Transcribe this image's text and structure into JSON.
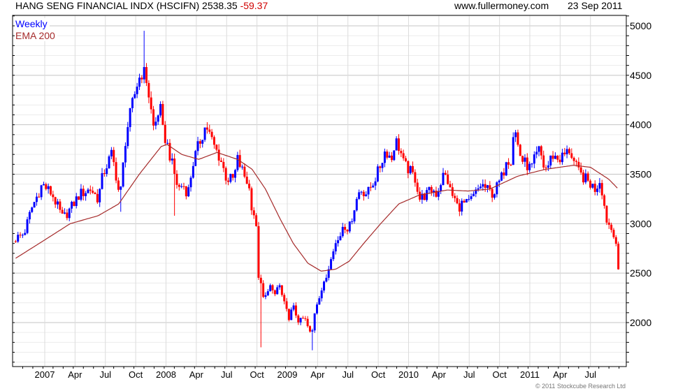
{
  "header": {
    "title": "HANG SENG FINANCIAL INDX (HSCIFN) 2538.35",
    "change": "-59.37",
    "site": "www.fullermoney.com",
    "date": "23 Sep 2011"
  },
  "copyright": "© 2011 Stockcube Research Ltd",
  "colors": {
    "up": "#0000ff",
    "down": "#ff0000",
    "ema": "#a52a2a",
    "change": "#d00000"
  },
  "chart_data": {
    "type": "candlestick",
    "title": "HANG SENG FINANCIAL INDX (HSCIFN)",
    "legend": [
      {
        "label": "Weekly",
        "color": "#0000ff"
      },
      {
        "label": "EMA 200",
        "color": "#a52a2a"
      }
    ],
    "legend_placement": "top-left",
    "frequency": "weekly",
    "last_close": 2538.35,
    "last_change": -59.37,
    "ylim": [
      1560,
      5100
    ],
    "y_ticks": [
      2000,
      2500,
      3000,
      3500,
      4000,
      4500,
      5000
    ],
    "y_tick_labels": [
      "2000",
      "2500",
      "3000",
      "3500",
      "4000",
      "4500",
      "5000"
    ],
    "x_tick_labels": [
      "2007",
      "Apr",
      "Jul",
      "Oct",
      "2008",
      "Apr",
      "Jul",
      "Oct",
      "2009",
      "Apr",
      "Jul",
      "Oct",
      "2010",
      "Apr",
      "Jul",
      "Oct",
      "2011",
      "Apr",
      "Jul"
    ],
    "x_tick_start_year": 2007,
    "grid": true,
    "weekly_close_keypoints": [
      [
        2006.76,
        2850
      ],
      [
        2006.83,
        2900
      ],
      [
        2006.89,
        3150
      ],
      [
        2006.98,
        3400
      ],
      [
        2007.06,
        3300
      ],
      [
        2007.15,
        3050
      ],
      [
        2007.21,
        3150
      ],
      [
        2007.29,
        3300
      ],
      [
        2007.38,
        3350
      ],
      [
        2007.44,
        3250
      ],
      [
        2007.48,
        3500
      ],
      [
        2007.55,
        3700
      ],
      [
        2007.58,
        3550
      ],
      [
        2007.62,
        3250
      ],
      [
        2007.67,
        3900
      ],
      [
        2007.73,
        4250
      ],
      [
        2007.77,
        4450
      ],
      [
        2007.81,
        4550
      ],
      [
        2007.84,
        4450
      ],
      [
        2007.87,
        4200
      ],
      [
        2007.9,
        3950
      ],
      [
        2007.95,
        4200
      ],
      [
        2007.97,
        3950
      ],
      [
        2008.01,
        3800
      ],
      [
        2008.06,
        3550
      ],
      [
        2008.1,
        3350
      ],
      [
        2008.14,
        3400
      ],
      [
        2008.18,
        3300
      ],
      [
        2008.22,
        3600
      ],
      [
        2008.27,
        3800
      ],
      [
        2008.33,
        4000
      ],
      [
        2008.39,
        3800
      ],
      [
        2008.45,
        3650
      ],
      [
        2008.5,
        3450
      ],
      [
        2008.56,
        3450
      ],
      [
        2008.59,
        3650
      ],
      [
        2008.64,
        3500
      ],
      [
        2008.68,
        3400
      ],
      [
        2008.71,
        3150
      ],
      [
        2008.74,
        3050
      ],
      [
        2008.76,
        2500
      ],
      [
        2008.81,
        2200
      ],
      [
        2008.85,
        2400
      ],
      [
        2008.89,
        2250
      ],
      [
        2008.93,
        2400
      ],
      [
        2008.97,
        2200
      ],
      [
        2009.01,
        2050
      ],
      [
        2009.05,
        2150
      ],
      [
        2009.1,
        2000
      ],
      [
        2009.14,
        2050
      ],
      [
        2009.17,
        1950
      ],
      [
        2009.2,
        1850
      ],
      [
        2009.23,
        2150
      ],
      [
        2009.27,
        2300
      ],
      [
        2009.31,
        2400
      ],
      [
        2009.34,
        2550
      ],
      [
        2009.37,
        2750
      ],
      [
        2009.43,
        2850
      ],
      [
        2009.46,
        3000
      ],
      [
        2009.51,
        2950
      ],
      [
        2009.56,
        3200
      ],
      [
        2009.6,
        3350
      ],
      [
        2009.66,
        3300
      ],
      [
        2009.7,
        3400
      ],
      [
        2009.74,
        3500
      ],
      [
        2009.77,
        3600
      ],
      [
        2009.81,
        3750
      ],
      [
        2009.86,
        3650
      ],
      [
        2009.89,
        3850
      ],
      [
        2009.93,
        3750
      ],
      [
        2009.96,
        3600
      ],
      [
        2010.0,
        3550
      ],
      [
        2010.06,
        3450
      ],
      [
        2010.09,
        3250
      ],
      [
        2010.15,
        3300
      ],
      [
        2010.2,
        3350
      ],
      [
        2010.23,
        3300
      ],
      [
        2010.29,
        3500
      ],
      [
        2010.32,
        3450
      ],
      [
        2010.35,
        3300
      ],
      [
        2010.38,
        3250
      ],
      [
        2010.41,
        3150
      ],
      [
        2010.43,
        3200
      ],
      [
        2010.49,
        3200
      ],
      [
        2010.55,
        3300
      ],
      [
        2010.6,
        3400
      ],
      [
        2010.64,
        3350
      ],
      [
        2010.7,
        3300
      ],
      [
        2010.74,
        3400
      ],
      [
        2010.78,
        3500
      ],
      [
        2010.81,
        3700
      ],
      [
        2010.84,
        3600
      ],
      [
        2010.87,
        4000
      ],
      [
        2010.9,
        3800
      ],
      [
        2010.93,
        3650
      ],
      [
        2010.97,
        3600
      ],
      [
        2011.01,
        3550
      ],
      [
        2011.04,
        3650
      ],
      [
        2011.08,
        3750
      ],
      [
        2011.12,
        3550
      ],
      [
        2011.16,
        3600
      ],
      [
        2011.18,
        3700
      ],
      [
        2011.24,
        3650
      ],
      [
        2011.29,
        3700
      ],
      [
        2011.33,
        3750
      ],
      [
        2011.37,
        3600
      ],
      [
        2011.41,
        3500
      ],
      [
        2011.46,
        3450
      ],
      [
        2011.5,
        3400
      ],
      [
        2011.54,
        3350
      ],
      [
        2011.58,
        3450
      ],
      [
        2011.6,
        3300
      ],
      [
        2011.63,
        3050
      ],
      [
        2011.67,
        2950
      ],
      [
        2011.7,
        2900
      ],
      [
        2011.71,
        2820
      ],
      [
        2011.73,
        2538.35
      ]
    ],
    "notable_wicks": [
      [
        2007.82,
        "high",
        4950
      ],
      [
        2008.78,
        "low",
        1750
      ],
      [
        2009.2,
        "low",
        1720
      ],
      [
        2007.62,
        "low",
        3120
      ],
      [
        2008.07,
        "low",
        3080
      ]
    ],
    "ema200_keypoints": [
      [
        2006.76,
        2650
      ],
      [
        2006.98,
        2820
      ],
      [
        2007.21,
        3000
      ],
      [
        2007.44,
        3080
      ],
      [
        2007.61,
        3200
      ],
      [
        2007.78,
        3500
      ],
      [
        2007.96,
        3780
      ],
      [
        2008.01,
        3800
      ],
      [
        2008.13,
        3700
      ],
      [
        2008.27,
        3650
      ],
      [
        2008.42,
        3720
      ],
      [
        2008.59,
        3650
      ],
      [
        2008.71,
        3550
      ],
      [
        2008.82,
        3350
      ],
      [
        2008.94,
        3050
      ],
      [
        2009.05,
        2800
      ],
      [
        2009.17,
        2600
      ],
      [
        2009.28,
        2520
      ],
      [
        2009.4,
        2540
      ],
      [
        2009.51,
        2620
      ],
      [
        2009.63,
        2800
      ],
      [
        2009.77,
        3000
      ],
      [
        2009.92,
        3200
      ],
      [
        2010.09,
        3290
      ],
      [
        2010.32,
        3340
      ],
      [
        2010.49,
        3330
      ],
      [
        2010.67,
        3350
      ],
      [
        2010.9,
        3480
      ],
      [
        2011.13,
        3550
      ],
      [
        2011.36,
        3590
      ],
      [
        2011.5,
        3570
      ],
      [
        2011.65,
        3450
      ],
      [
        2011.73,
        3350
      ]
    ]
  }
}
